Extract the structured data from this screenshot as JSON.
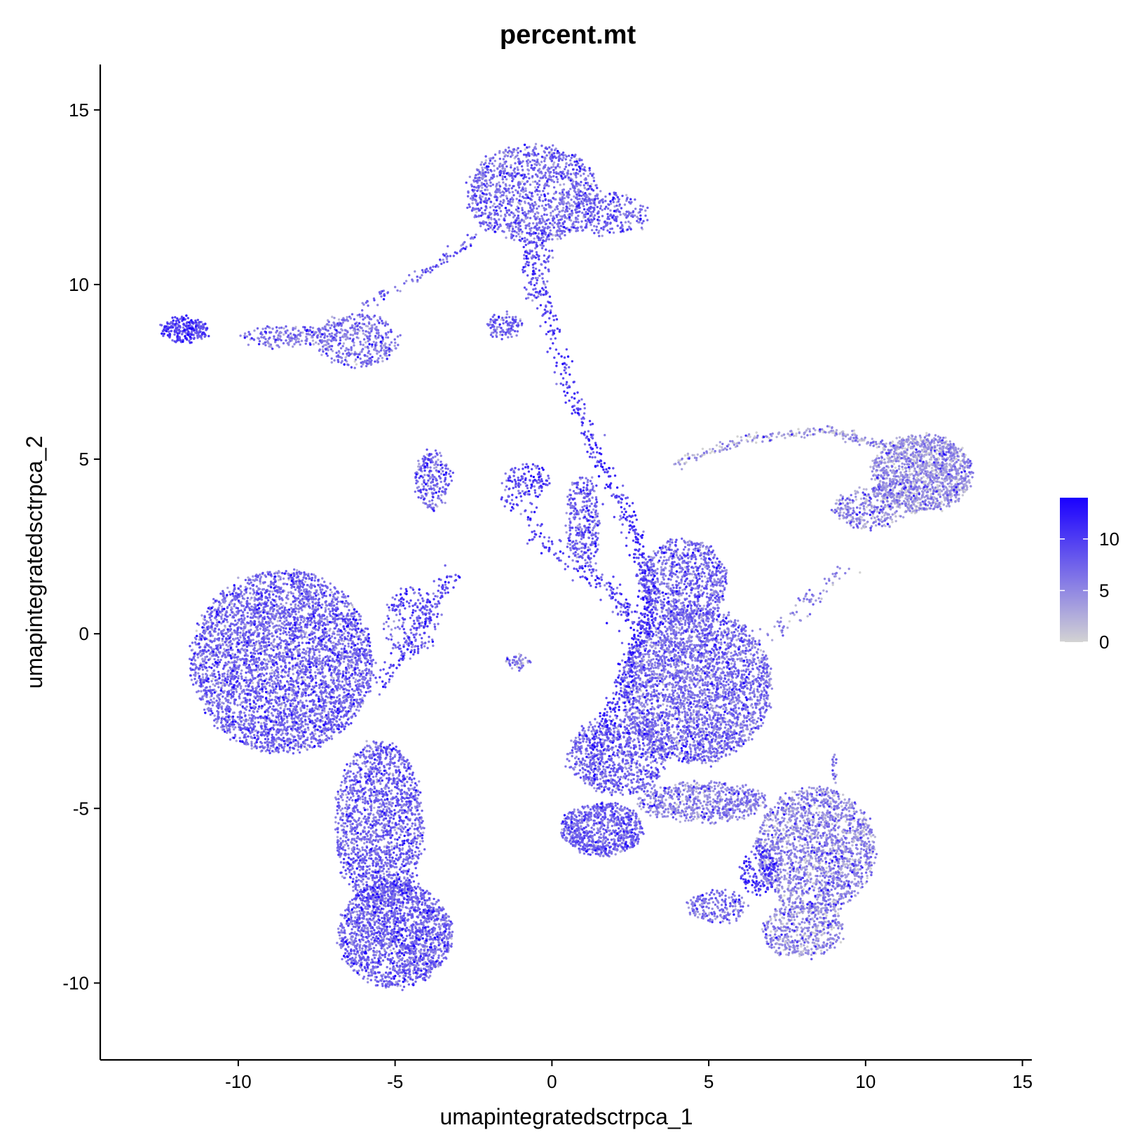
{
  "chart_data": {
    "type": "scatter",
    "title": "percent.mt",
    "xlabel": "umapintegratedsctrpca_1",
    "ylabel": "umapintegratedsctrpca_2",
    "xlim": [
      -14.4,
      15.3
    ],
    "ylim": [
      -12.2,
      16.3
    ],
    "x_ticks": [
      -10,
      -5,
      0,
      5,
      10,
      15
    ],
    "y_ticks": [
      -10,
      -5,
      0,
      5,
      10,
      15
    ],
    "x_tick_labels": [
      "-10",
      "-5",
      "0",
      "5",
      "10",
      "15"
    ],
    "y_tick_labels": [
      "-10",
      "-5",
      "0",
      "5",
      "10",
      "15"
    ],
    "grid": false,
    "color_scale": {
      "low_color": "#d3d3d3",
      "high_color": "#1a00ff",
      "min": 0,
      "max": 14,
      "ticks": [
        0,
        5,
        10
      ],
      "tick_labels": [
        "0",
        "5",
        "10"
      ],
      "legend_position": "right"
    },
    "clusters": [
      {
        "id": "top-cluster",
        "cx": -0.6,
        "cy": 12.6,
        "rx": 2.1,
        "ry": 1.4,
        "n": 1300,
        "mt_mean": 5.5
      },
      {
        "id": "top-right-lobe",
        "cx": 1.8,
        "cy": 12.0,
        "rx": 1.3,
        "ry": 0.6,
        "n": 250,
        "mt_mean": 6.0
      },
      {
        "id": "left-arm-tip",
        "cx": -11.7,
        "cy": 8.7,
        "rx": 0.75,
        "ry": 0.35,
        "n": 260,
        "mt_mean": 8.0
      },
      {
        "id": "left-arm-band",
        "cx": -8.5,
        "cy": 8.5,
        "rx": 1.4,
        "ry": 0.3,
        "n": 180,
        "mt_mean": 5.0
      },
      {
        "id": "left-arm-blob",
        "cx": -6.2,
        "cy": 8.4,
        "rx": 1.3,
        "ry": 0.75,
        "n": 420,
        "mt_mean": 5.0
      },
      {
        "id": "stem-upper",
        "cx": -0.5,
        "cy": 10.5,
        "rx": 0.45,
        "ry": 1.2,
        "n": 160,
        "mt_mean": 7.0
      },
      {
        "id": "small-patch-mid",
        "cx": -1.5,
        "cy": 8.8,
        "rx": 0.55,
        "ry": 0.35,
        "n": 110,
        "mt_mean": 6.0
      },
      {
        "id": "narrow-blob-left",
        "cx": -3.8,
        "cy": 4.4,
        "rx": 0.55,
        "ry": 0.9,
        "n": 220,
        "mt_mean": 6.0
      },
      {
        "id": "cross-blob",
        "cx": -0.8,
        "cy": 4.4,
        "rx": 0.7,
        "ry": 0.5,
        "n": 120,
        "mt_mean": 8.0
      },
      {
        "id": "mid-blob",
        "cx": 1.0,
        "cy": 3.2,
        "rx": 0.55,
        "ry": 1.3,
        "n": 320,
        "mt_mean": 6.0
      },
      {
        "id": "small-streak",
        "cx": -1.1,
        "cy": -0.8,
        "rx": 0.4,
        "ry": 0.2,
        "n": 50,
        "mt_mean": 4.0
      },
      {
        "id": "left-big",
        "cx": -8.6,
        "cy": -0.8,
        "rx": 2.9,
        "ry": 2.6,
        "n": 4400,
        "mt_mean": 5.5
      },
      {
        "id": "left-lower",
        "cx": -5.5,
        "cy": -5.5,
        "rx": 1.4,
        "ry": 2.4,
        "n": 1800,
        "mt_mean": 5.8
      },
      {
        "id": "left-bottom",
        "cx": -5.0,
        "cy": -8.6,
        "rx": 1.8,
        "ry": 1.5,
        "n": 1900,
        "mt_mean": 5.8
      },
      {
        "id": "left-bulge",
        "cx": -4.5,
        "cy": 0.3,
        "rx": 0.9,
        "ry": 1.0,
        "n": 180,
        "mt_mean": 6.5
      },
      {
        "id": "right-top-blob",
        "cx": 11.8,
        "cy": 4.6,
        "rx": 1.6,
        "ry": 1.1,
        "n": 1500,
        "mt_mean": 2.5
      },
      {
        "id": "right-top-lower",
        "cx": 10.2,
        "cy": 3.6,
        "rx": 1.2,
        "ry": 0.6,
        "n": 350,
        "mt_mean": 3.0
      },
      {
        "id": "central-mass",
        "cx": 4.6,
        "cy": -1.5,
        "rx": 2.4,
        "ry": 2.2,
        "n": 3200,
        "mt_mean": 5.0
      },
      {
        "id": "central-upper",
        "cx": 4.2,
        "cy": 1.5,
        "rx": 1.4,
        "ry": 1.2,
        "n": 900,
        "mt_mean": 5.5
      },
      {
        "id": "diagonal-lower-left",
        "cx": 2.1,
        "cy": -3.5,
        "rx": 1.6,
        "ry": 1.1,
        "n": 900,
        "mt_mean": 5.5
      },
      {
        "id": "bottom-left-lobe",
        "cx": 1.6,
        "cy": -5.6,
        "rx": 1.3,
        "ry": 0.75,
        "n": 800,
        "mt_mean": 6.0
      },
      {
        "id": "bottom-mid-band",
        "cx": 4.8,
        "cy": -4.8,
        "rx": 2.1,
        "ry": 0.55,
        "n": 700,
        "mt_mean": 4.0
      },
      {
        "id": "right-lower-cluster",
        "cx": 8.4,
        "cy": -6.2,
        "rx": 1.9,
        "ry": 1.8,
        "n": 1900,
        "mt_mean": 3.5
      },
      {
        "id": "right-lower-bottom",
        "cx": 8.0,
        "cy": -8.5,
        "rx": 1.3,
        "ry": 0.75,
        "n": 500,
        "mt_mean": 3.0
      },
      {
        "id": "right-lower-hotspot",
        "cx": 6.6,
        "cy": -6.8,
        "rx": 0.6,
        "ry": 0.7,
        "n": 150,
        "mt_mean": 9.0
      },
      {
        "id": "bottom-tail",
        "cx": 5.3,
        "cy": -7.8,
        "rx": 1.0,
        "ry": 0.45,
        "n": 200,
        "mt_mean": 5.0
      }
    ],
    "paths": [
      {
        "id": "arc-right",
        "points": [
          [
            4.0,
            4.9
          ],
          [
            6.3,
            5.6
          ],
          [
            8.8,
            5.8
          ],
          [
            10.6,
            5.4
          ]
        ],
        "n": 240,
        "spread": 0.12,
        "mt_mean": 2.0
      },
      {
        "id": "stem-main",
        "points": [
          [
            -0.3,
            9.8
          ],
          [
            0.4,
            7.4
          ],
          [
            1.4,
            5.2
          ],
          [
            2.6,
            3.0
          ],
          [
            3.1,
            1.0
          ],
          [
            3.0,
            0.0
          ]
        ],
        "n": 420,
        "spread": 0.25,
        "mt_mean": 9.0
      },
      {
        "id": "thread-left",
        "points": [
          [
            -2.4,
            11.4
          ],
          [
            -4.0,
            10.4
          ],
          [
            -6.0,
            9.4
          ]
        ],
        "n": 90,
        "spread": 0.12,
        "mt_mean": 6.0
      },
      {
        "id": "bridge-mid",
        "points": [
          [
            -1.6,
            4.2
          ],
          [
            0.0,
            2.4
          ],
          [
            1.8,
            1.3
          ],
          [
            2.6,
            0.4
          ]
        ],
        "n": 200,
        "spread": 0.3,
        "mt_mean": 8.0
      },
      {
        "id": "thread-left-lower",
        "points": [
          [
            -3.1,
            1.8
          ],
          [
            -4.2,
            0.2
          ],
          [
            -5.6,
            -1.6
          ]
        ],
        "n": 150,
        "spread": 0.3,
        "mt_mean": 8.0
      },
      {
        "id": "thread-right-central",
        "points": [
          [
            9.5,
            2.0
          ],
          [
            8.2,
            0.9
          ],
          [
            7.0,
            0.0
          ]
        ],
        "n": 70,
        "spread": 0.25,
        "mt_mean": 4.0
      },
      {
        "id": "hot-diagonal",
        "points": [
          [
            2.9,
            0.2
          ],
          [
            2.1,
            -1.8
          ],
          [
            1.3,
            -3.4
          ]
        ],
        "n": 180,
        "spread": 0.28,
        "mt_mean": 10.0
      },
      {
        "id": "right-tail-up",
        "points": [
          [
            9.0,
            -4.3
          ],
          [
            9.0,
            -3.5
          ]
        ],
        "n": 20,
        "spread": 0.08,
        "mt_mean": 4.0
      }
    ]
  }
}
